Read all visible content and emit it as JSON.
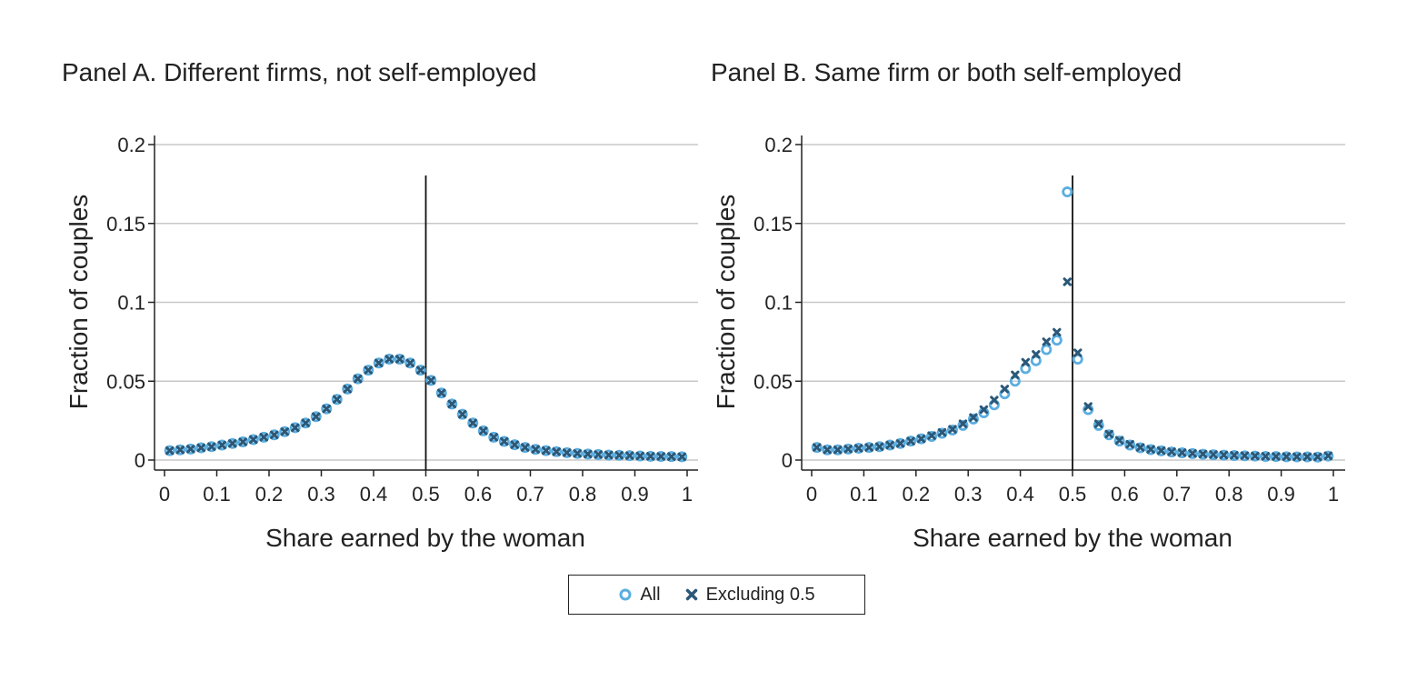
{
  "chart_data": [
    {
      "type": "scatter",
      "title": "Panel A. Different firms, not self-employed",
      "xlabel": "Share earned by the woman",
      "ylabel": "Fraction of couples",
      "xlim": [
        0,
        1
      ],
      "ylim": [
        0,
        0.2
      ],
      "xticks": [
        "0",
        "0.1",
        "0.2",
        "0.3",
        "0.4",
        "0.5",
        "0.6",
        "0.7",
        "0.8",
        "0.9",
        "1"
      ],
      "yticks": [
        "0",
        "0.05",
        "0.1",
        "0.15",
        "0.2"
      ],
      "vline": 0.5,
      "grid": true,
      "x": [
        0.01,
        0.03,
        0.05,
        0.07,
        0.09,
        0.11,
        0.13,
        0.15,
        0.17,
        0.19,
        0.21,
        0.23,
        0.25,
        0.27,
        0.29,
        0.31,
        0.33,
        0.35,
        0.37,
        0.39,
        0.41,
        0.43,
        0.45,
        0.47,
        0.49,
        0.51,
        0.53,
        0.55,
        0.57,
        0.59,
        0.61,
        0.63,
        0.65,
        0.67,
        0.69,
        0.71,
        0.73,
        0.75,
        0.77,
        0.79,
        0.81,
        0.83,
        0.85,
        0.87,
        0.89,
        0.91,
        0.93,
        0.95,
        0.97,
        0.99
      ],
      "series": [
        {
          "name": "All",
          "marker": "circle-open",
          "color": "#5aaee0",
          "values": [
            0.006,
            0.0065,
            0.007,
            0.0078,
            0.0085,
            0.0095,
            0.0105,
            0.0115,
            0.013,
            0.0145,
            0.016,
            0.018,
            0.0205,
            0.0235,
            0.0275,
            0.0325,
            0.0385,
            0.045,
            0.0515,
            0.057,
            0.0615,
            0.064,
            0.064,
            0.0615,
            0.057,
            0.0505,
            0.0425,
            0.0355,
            0.029,
            0.0235,
            0.0185,
            0.0145,
            0.0118,
            0.0097,
            0.008,
            0.0068,
            0.006,
            0.0053,
            0.0047,
            0.0042,
            0.0038,
            0.0035,
            0.0032,
            0.003,
            0.0028,
            0.0026,
            0.0024,
            0.0023,
            0.0022,
            0.0021
          ]
        },
        {
          "name": "Excluding 0.5",
          "marker": "x",
          "color": "#2b5878",
          "values": [
            0.006,
            0.0065,
            0.007,
            0.0078,
            0.0085,
            0.0095,
            0.0105,
            0.0115,
            0.013,
            0.0145,
            0.016,
            0.018,
            0.0205,
            0.0235,
            0.0275,
            0.0325,
            0.0385,
            0.045,
            0.0515,
            0.057,
            0.0615,
            0.064,
            0.064,
            0.0615,
            0.057,
            0.0505,
            0.0425,
            0.0355,
            0.029,
            0.0235,
            0.0185,
            0.0145,
            0.0118,
            0.0097,
            0.008,
            0.0068,
            0.006,
            0.0053,
            0.0047,
            0.0042,
            0.0038,
            0.0035,
            0.0032,
            0.003,
            0.0028,
            0.0026,
            0.0024,
            0.0023,
            0.0022,
            0.0021
          ]
        }
      ]
    },
    {
      "type": "scatter",
      "title": "Panel B. Same firm or both self-employed",
      "xlabel": "Share earned by the woman",
      "ylabel": "Fraction of couples",
      "xlim": [
        0,
        1
      ],
      "ylim": [
        0,
        0.2
      ],
      "xticks": [
        "0",
        "0.1",
        "0.2",
        "0.3",
        "0.4",
        "0.5",
        "0.6",
        "0.7",
        "0.8",
        "0.9",
        "1"
      ],
      "yticks": [
        "0",
        "0.05",
        "0.1",
        "0.15",
        "0.2"
      ],
      "vline": 0.5,
      "grid": true,
      "x": [
        0.01,
        0.03,
        0.05,
        0.07,
        0.09,
        0.11,
        0.13,
        0.15,
        0.17,
        0.19,
        0.21,
        0.23,
        0.25,
        0.27,
        0.29,
        0.31,
        0.33,
        0.35,
        0.37,
        0.39,
        0.41,
        0.43,
        0.45,
        0.47,
        0.49,
        0.51,
        0.53,
        0.55,
        0.57,
        0.59,
        0.61,
        0.63,
        0.65,
        0.67,
        0.69,
        0.71,
        0.73,
        0.75,
        0.77,
        0.79,
        0.81,
        0.83,
        0.85,
        0.87,
        0.89,
        0.91,
        0.93,
        0.95,
        0.97,
        0.99
      ],
      "series": [
        {
          "name": "All",
          "marker": "circle-open",
          "color": "#5aaee0",
          "values": [
            0.008,
            0.0065,
            0.0065,
            0.007,
            0.0075,
            0.008,
            0.0085,
            0.0095,
            0.0105,
            0.012,
            0.0135,
            0.015,
            0.017,
            0.019,
            0.022,
            0.026,
            0.03,
            0.035,
            0.042,
            0.05,
            0.058,
            0.063,
            0.07,
            0.076,
            0.17,
            0.064,
            0.032,
            0.022,
            0.016,
            0.012,
            0.0095,
            0.0078,
            0.0066,
            0.0058,
            0.0051,
            0.0046,
            0.0041,
            0.0037,
            0.0034,
            0.0031,
            0.0029,
            0.0027,
            0.0025,
            0.0023,
            0.0022,
            0.0021,
            0.002,
            0.002,
            0.0019,
            0.0025
          ]
        },
        {
          "name": "Excluding 0.5",
          "marker": "x",
          "color": "#2b5878",
          "values": [
            0.008,
            0.0065,
            0.0065,
            0.007,
            0.0075,
            0.008,
            0.0085,
            0.0095,
            0.0105,
            0.012,
            0.0135,
            0.0155,
            0.0175,
            0.0195,
            0.023,
            0.027,
            0.032,
            0.038,
            0.045,
            0.054,
            0.062,
            0.067,
            0.075,
            0.081,
            0.113,
            0.068,
            0.034,
            0.023,
            0.0165,
            0.0125,
            0.01,
            0.008,
            0.0068,
            0.006,
            0.0053,
            0.0047,
            0.0042,
            0.0038,
            0.0035,
            0.0032,
            0.003,
            0.0028,
            0.0026,
            0.0024,
            0.0023,
            0.0022,
            0.0021,
            0.0021,
            0.002,
            0.0027
          ]
        }
      ]
    }
  ],
  "legend": {
    "items": [
      {
        "label": "All",
        "marker": "circle-open",
        "color": "#5aaee0"
      },
      {
        "label": "Excluding 0.5",
        "marker": "x",
        "color": "#2b5878"
      }
    ]
  }
}
